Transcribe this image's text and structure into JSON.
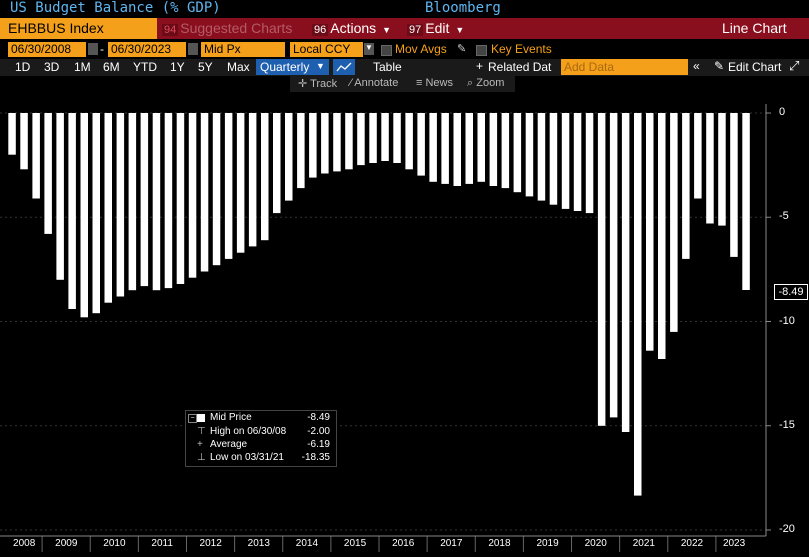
{
  "header": {
    "title": "US Budget Balance (% GDP)",
    "brand": "Bloomberg",
    "ticker": "EHBBUS Index",
    "suggested_num": "94",
    "suggested_label": "Suggested Charts",
    "actions_num": "96",
    "actions_label": "Actions",
    "edit_num": "97",
    "edit_label": "Edit",
    "chart_type_label": "Line Chart"
  },
  "controls": {
    "start_date": "06/30/2008",
    "end_date": "06/30/2023",
    "price_field": "Mid Px",
    "currency": "Local CCY",
    "mov_avgs": "Mov Avgs",
    "key_events": "Key Events",
    "periods": [
      "1D",
      "3D",
      "1M",
      "6M",
      "YTD",
      "1Y",
      "5Y",
      "Max"
    ],
    "frequency": "Quarterly",
    "table_label": "Table",
    "related_data": "Related Dat",
    "add_data_placeholder": "Add Data",
    "edit_chart": "Edit Chart",
    "tools": [
      "Track",
      "Annotate",
      "News",
      "Zoom"
    ]
  },
  "legend": {
    "mid_price_label": "Mid Price",
    "mid_price_value": "-8.49",
    "high_label": "High on 06/30/08",
    "high_value": "-2.00",
    "average_label": "Average",
    "average_value": "-6.19",
    "low_label": "Low on 03/31/21",
    "low_value": "-18.35"
  },
  "last_value_label": "-8.49",
  "colors": {
    "background": "#000000",
    "bars": "#ffffff",
    "title": "#5fb5f0",
    "accent_orange": "#f5a01a",
    "toolbar_red": "#8a0f1e",
    "selected_blue": "#1f5fb0"
  },
  "chart_data": {
    "type": "bar",
    "title": "US Budget Balance (% GDP)",
    "ylim": [
      -20,
      0
    ],
    "yticks": [
      "0",
      "-5",
      "-10",
      "-15",
      "-20"
    ],
    "xticks": [
      "2008",
      "2009",
      "2010",
      "2011",
      "2012",
      "2013",
      "2014",
      "2015",
      "2016",
      "2017",
      "2018",
      "2019",
      "2020",
      "2021",
      "2022",
      "2023"
    ],
    "series": [
      {
        "values": [
          -2.0,
          -2.7,
          -4.1,
          -5.8,
          -8.0,
          -9.4,
          -9.8,
          -9.6,
          -9.1,
          -8.8,
          -8.5,
          -8.3,
          -8.5,
          -8.4,
          -8.2,
          -7.9,
          -7.6,
          -7.3,
          -7.0,
          -6.7,
          -6.4,
          -6.1,
          -4.8,
          -4.2,
          -3.6,
          -3.1,
          -2.9,
          -2.8,
          -2.7,
          -2.5,
          -2.4,
          -2.3,
          -2.4,
          -2.7,
          -3.0,
          -3.3,
          -3.4,
          -3.5,
          -3.4,
          -3.3,
          -3.5,
          -3.6,
          -3.8,
          -4.0,
          -4.2,
          -4.4,
          -4.6,
          -4.7,
          -4.8,
          -15.0,
          -14.6,
          -15.3,
          -18.35,
          -11.4,
          -11.8,
          -10.5,
          -7.0,
          -4.1,
          -5.3,
          -5.4,
          -6.9,
          -8.49
        ]
      }
    ]
  }
}
